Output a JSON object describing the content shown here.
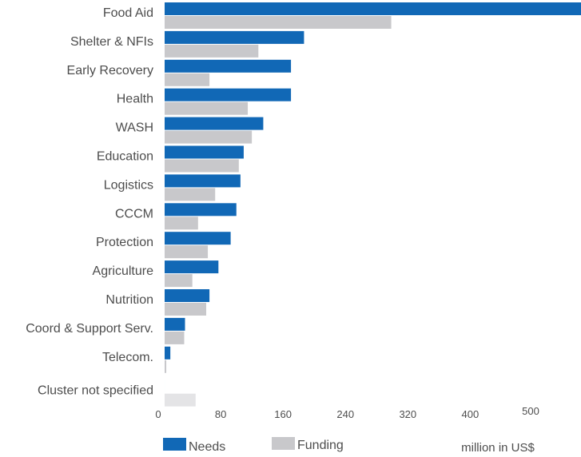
{
  "chart_data": {
    "type": "bar",
    "orientation": "horizontal",
    "title": "",
    "xlabel": "million in US$",
    "ylabel": "",
    "xlim": [
      0,
      520
    ],
    "x_ticks": [
      "0",
      "80",
      "160",
      "240",
      "320",
      "400",
      "500"
    ],
    "grid": false,
    "legend_position": "bottom",
    "categories": [
      "Food Aid",
      "Shelter & NFIs",
      "Early Recovery",
      "Health",
      "WASH",
      "Education",
      "Logistics",
      "CCCM",
      "Protection",
      "Agriculture",
      "Nutrition",
      "Coord & Support Serv.",
      "Telecom.",
      "Cluster not specified"
    ],
    "series": [
      {
        "name": "Needs",
        "color": "#1168b6",
        "values": [
          520,
          171,
          155,
          155,
          121,
          97,
          93,
          88,
          81,
          66,
          55,
          25,
          7,
          0
        ]
      },
      {
        "name": "Funding",
        "color": "#c8c8cb",
        "values": [
          278,
          115,
          55,
          102,
          107,
          91,
          62,
          41,
          53,
          34,
          51,
          24,
          2,
          38
        ]
      }
    ],
    "colors": {
      "needs": "#1168b6",
      "funding": "#c8c8cb",
      "funding_unassigned": "#e4e4e6",
      "text": "#4d4d4d"
    }
  }
}
